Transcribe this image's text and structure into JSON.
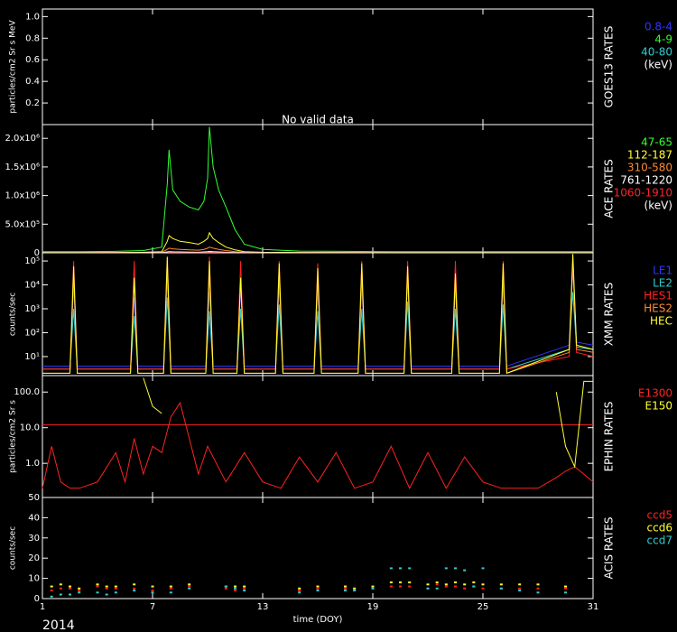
{
  "chart_data": [
    {
      "type": "line",
      "ylabel": "particles/cm2 Sr s MeV",
      "side_label": "GOES13 RATES",
      "annotation": "No valid data",
      "xlim": [
        1,
        31
      ],
      "ylim": [
        0,
        1.07
      ],
      "yticks": [
        0.2,
        0.4,
        0.6,
        0.8,
        {
          "value": 1,
          "label": "1.0"
        }
      ],
      "x": [],
      "series": [
        {
          "name": "0.8-4",
          "color": "#3333ff",
          "values": []
        },
        {
          "name": "4-9",
          "color": "#33ff33",
          "values": []
        },
        {
          "name": "40-80",
          "color": "#33cccc",
          "values": []
        }
      ],
      "legend_unit": "(keV)"
    },
    {
      "type": "line",
      "side_label": "ACE RATES",
      "xlim": [
        1,
        31
      ],
      "ylim": [
        0,
        2240000
      ],
      "yticks": [
        0,
        {
          "value": 500000,
          "label": "5.0x10⁵"
        },
        {
          "value": 1000000,
          "label": "1.0x10⁶"
        },
        {
          "value": 1500000,
          "label": "1.5x10⁶"
        },
        {
          "value": 2000000,
          "label": "2.0x10⁶"
        }
      ],
      "x": [
        1,
        3,
        5,
        6.5,
        7.5,
        7.8,
        7.9,
        8.1,
        8.5,
        9,
        9.5,
        9.8,
        10,
        10.1,
        10.3,
        10.6,
        11,
        11.5,
        12,
        13,
        15,
        20,
        25,
        31
      ],
      "series": [
        {
          "name": "47-65",
          "color": "#33ff33",
          "values": [
            20000,
            20000,
            25000,
            40000,
            100000,
            1200000,
            1800000,
            1100000,
            900000,
            800000,
            750000,
            900000,
            1300000,
            2200000,
            1500000,
            1100000,
            800000,
            400000,
            150000,
            60000,
            30000,
            20000,
            20000,
            20000
          ]
        },
        {
          "name": "112-187",
          "color": "#ffff33",
          "values": [
            5000,
            5000,
            6000,
            10000,
            20000,
            200000,
            300000,
            250000,
            200000,
            180000,
            150000,
            200000,
            250000,
            350000,
            250000,
            180000,
            100000,
            50000,
            20000,
            10000,
            6000,
            5000,
            5000,
            5000
          ]
        },
        {
          "name": "310-580",
          "color": "#ff8833",
          "values": [
            2000,
            2000,
            2500,
            4000,
            8000,
            60000,
            80000,
            70000,
            60000,
            50000,
            45000,
            60000,
            80000,
            100000,
            80000,
            60000,
            40000,
            20000,
            8000,
            4000,
            2500,
            2000,
            2000,
            2000
          ]
        },
        {
          "name": "761-1220",
          "color": "#ffffff",
          "values": [
            500,
            500,
            600,
            1000,
            2000,
            15000,
            20000,
            18000,
            15000,
            12000,
            10000,
            15000,
            20000,
            25000,
            20000,
            15000,
            10000,
            5000,
            2000,
            1000,
            600,
            500,
            500,
            500
          ]
        },
        {
          "name": "1060-1910",
          "color": "#ff2222",
          "values": [
            200,
            200,
            250,
            400,
            800,
            5000,
            8000,
            7000,
            6000,
            5000,
            4000,
            6000,
            8000,
            10000,
            8000,
            6000,
            4000,
            2000,
            800,
            400,
            250,
            200,
            200,
            200
          ]
        }
      ],
      "legend_unit": "(keV)"
    },
    {
      "type": "line",
      "log": true,
      "ylabel": "counts/sec",
      "side_label": "XMM RATES",
      "xlim": [
        1,
        31
      ],
      "ylim": [
        1.6,
        220000
      ],
      "yticks": [
        {
          "value": 10,
          "label": "10¹"
        },
        {
          "value": 100,
          "label": "10²"
        },
        {
          "value": 1000,
          "label": "10³"
        },
        {
          "value": 10000,
          "label": "10⁴"
        },
        {
          "value": 100000,
          "label": "10⁵"
        }
      ],
      "x": [
        1,
        2.5,
        2.7,
        2.9,
        5.8,
        6.0,
        6.2,
        7.6,
        7.8,
        8.0,
        9.9,
        10.1,
        10.3,
        11.6,
        11.8,
        12.0,
        13.7,
        13.9,
        14.1,
        15.8,
        16.0,
        16.2,
        18.2,
        18.4,
        18.6,
        20.7,
        20.9,
        21.1,
        23.3,
        23.5,
        23.7,
        25.9,
        26.1,
        26.3,
        29.7,
        29.9,
        30.1,
        31
      ],
      "series": [
        {
          "name": "LE1",
          "color": "#3333ff",
          "values": [
            4,
            4,
            10000,
            4,
            4,
            3000,
            4,
            4,
            20000,
            4,
            4,
            5000,
            4,
            4,
            8000,
            4,
            4,
            10000,
            4,
            4,
            6000,
            4,
            4,
            10000,
            4,
            4,
            20000,
            4,
            4,
            8000,
            4,
            4,
            10000,
            4,
            30,
            50000,
            40,
            30
          ]
        },
        {
          "name": "LE2",
          "color": "#33cccc",
          "values": [
            3,
            3,
            1000,
            3,
            3,
            500,
            3,
            3,
            3000,
            3,
            3,
            800,
            3,
            3,
            1000,
            3,
            3,
            1500,
            3,
            3,
            800,
            3,
            3,
            1000,
            3,
            3,
            2000,
            3,
            3,
            1000,
            3,
            3,
            1500,
            3,
            20,
            5000,
            25,
            20
          ]
        },
        {
          "name": "HES1",
          "color": "#ff2222",
          "values": [
            3,
            3,
            100000,
            3,
            3,
            100000,
            3,
            3,
            150000,
            3,
            3,
            150000,
            3,
            3,
            100000,
            3,
            3,
            100000,
            3,
            3,
            80000,
            3,
            3,
            100000,
            3,
            3,
            100000,
            3,
            3,
            100000,
            3,
            3,
            100000,
            3,
            10,
            150000,
            15,
            10
          ]
        },
        {
          "name": "HES2",
          "color": "#ff8833",
          "values": [
            2,
            2,
            30000,
            2,
            2,
            20000,
            2,
            2,
            50000,
            2,
            2,
            40000,
            2,
            2,
            20000,
            2,
            2,
            30000,
            2,
            2,
            20000,
            2,
            2,
            30000,
            2,
            2,
            30000,
            2,
            2,
            20000,
            2,
            2,
            30000,
            2,
            15,
            80000,
            20,
            15
          ]
        },
        {
          "name": "HEC",
          "color": "#ffff33",
          "values": [
            2,
            2,
            60000,
            2,
            2,
            20000,
            2,
            2,
            150000,
            2,
            2,
            100000,
            2,
            2,
            20000,
            2,
            2,
            80000,
            2,
            2,
            50000,
            2,
            2,
            80000,
            2,
            2,
            60000,
            2,
            2,
            30000,
            2,
            2,
            80000,
            2,
            20,
            200000,
            30,
            20
          ]
        }
      ]
    },
    {
      "type": "line",
      "log": true,
      "ylabel": "particles/cm2 Sr s",
      "side_label": "EPHIN RATES",
      "xlim": [
        1,
        31
      ],
      "ylim": [
        0.11,
        290
      ],
      "yticks": [
        {
          "value": 1,
          "label": "1.0"
        },
        {
          "value": 10,
          "label": "10.0"
        },
        {
          "value": 100,
          "label": "100.0"
        }
      ],
      "hline": 12,
      "hline_color": "#ff2222",
      "x": [
        1,
        1.5,
        2,
        2.5,
        3,
        4,
        5,
        5.5,
        6,
        6.5,
        7,
        7.5,
        8,
        8.5,
        9,
        9.5,
        10,
        11,
        12,
        13,
        14,
        15,
        16,
        17,
        18,
        19,
        20,
        21,
        22,
        23,
        24,
        25,
        26,
        27,
        28,
        29,
        29.5,
        30,
        30.5,
        31
      ],
      "series": [
        {
          "name": "E1300",
          "color": "#ff2222",
          "values": [
            0.2,
            3,
            0.3,
            0.2,
            0.2,
            0.3,
            2,
            0.3,
            5,
            0.5,
            3,
            2,
            20,
            50,
            5,
            0.5,
            3,
            0.3,
            2,
            0.3,
            0.2,
            1.5,
            0.3,
            2,
            0.2,
            0.3,
            3,
            0.2,
            2,
            0.2,
            1.5,
            0.3,
            0.2,
            0.2,
            0.2,
            0.4,
            0.6,
            0.8,
            0.5,
            0.3
          ]
        },
        {
          "name": "E150",
          "color": "#ffff33",
          "values": [
            null,
            null,
            null,
            null,
            null,
            null,
            null,
            null,
            null,
            250,
            40,
            25,
            null,
            null,
            null,
            null,
            null,
            null,
            null,
            null,
            null,
            null,
            null,
            null,
            null,
            null,
            null,
            null,
            null,
            null,
            null,
            null,
            null,
            null,
            null,
            100,
            3,
            0.8,
            200,
            200
          ]
        }
      ]
    },
    {
      "type": "scatter",
      "ylabel": "counts/sec",
      "side_label": "ACIS RATES",
      "xlim": [
        1,
        31
      ],
      "ylim": [
        0,
        50
      ],
      "yticks": [
        0,
        10,
        20,
        30,
        40,
        50
      ],
      "xticks": [
        1,
        7,
        13,
        19,
        25,
        31
      ],
      "xlabel": "time (DOY)",
      "year": "2014",
      "x": [
        1.5,
        2,
        2.5,
        3,
        4,
        4.5,
        5,
        6,
        7,
        8,
        9,
        11,
        11.5,
        12,
        15,
        16,
        17.5,
        18,
        19,
        20,
        20.5,
        21,
        22,
        22.5,
        23,
        23.5,
        24,
        24.5,
        25,
        26,
        27,
        28,
        29.5
      ],
      "series": [
        {
          "name": "ccd5",
          "color": "#ff2222",
          "values": [
            4,
            5,
            5,
            4,
            6,
            5,
            5,
            5,
            4,
            5,
            6,
            5,
            4,
            5,
            4,
            5,
            5,
            4,
            5,
            6,
            6,
            6,
            5,
            7,
            6,
            6,
            5,
            6,
            5,
            5,
            5,
            5,
            5
          ]
        },
        {
          "name": "ccd6",
          "color": "#ffff33",
          "values": [
            6,
            7,
            6,
            5,
            7,
            6,
            6,
            7,
            6,
            6,
            7,
            6,
            6,
            6,
            5,
            6,
            6,
            5,
            6,
            8,
            8,
            8,
            7,
            8,
            7,
            8,
            7,
            8,
            7,
            7,
            7,
            7,
            6
          ]
        },
        {
          "name": "ccd7",
          "color": "#33cccc",
          "values": [
            1,
            2,
            2,
            3,
            3,
            2,
            3,
            4,
            3,
            3,
            5,
            6,
            5,
            4,
            3,
            4,
            4,
            4,
            5,
            15,
            15,
            15,
            5,
            5,
            15,
            15,
            14,
            6,
            15,
            5,
            4,
            3,
            3
          ]
        }
      ]
    }
  ]
}
